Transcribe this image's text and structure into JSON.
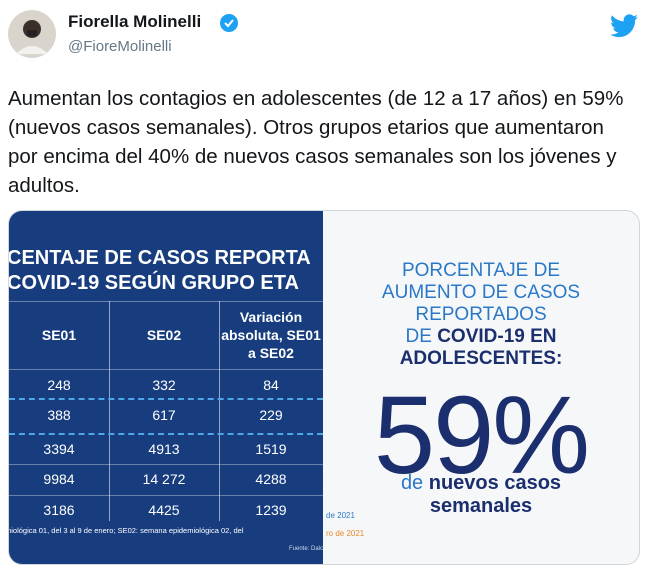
{
  "header": {
    "name": "Fiorella Molinelli",
    "handle": "@FioreMolinelli"
  },
  "tweet": {
    "text": "Aumentan los contagios en adolescentes (de 12 a 17 años) en 59% (nuevos casos semanales). Otros grupos etarios que aumentaron por encima del 40% de nuevos casos semanales son los jóvenes y adultos."
  },
  "image": {
    "table": {
      "title": [
        "CENTAJE DE CASOS REPORTA",
        "COVID-19 SEGÚN GRUPO ETA"
      ],
      "columns": [
        "SE01",
        "SE02",
        "Variación absoluta, SE01 a SE02"
      ],
      "rows": [
        [
          "248",
          "332",
          "84"
        ],
        [
          "388",
          "617",
          "229"
        ],
        [
          "3394",
          "4913",
          "1519"
        ],
        [
          "9984",
          "14 272",
          "4288"
        ],
        [
          "3186",
          "4425",
          "1239"
        ]
      ],
      "footnote": "miológica 01, del 3 al 9 de enero; SE02: semana epidemiológica 02, del",
      "date_1": "de 2021",
      "date_2": "ro de 2021",
      "source": "Fuente: Dalco"
    },
    "highlight": {
      "heading": [
        "PORCENTAJE DE",
        "AUMENTO DE CASOS",
        "REPORTADOS"
      ],
      "heading_prefix": "DE",
      "heading_bold": [
        "COVID-19 EN",
        "ADOLESCENTES:"
      ],
      "value": "59%",
      "caption_prefix": "de",
      "caption_bold": [
        "nuevos casos",
        "semanales"
      ]
    }
  }
}
